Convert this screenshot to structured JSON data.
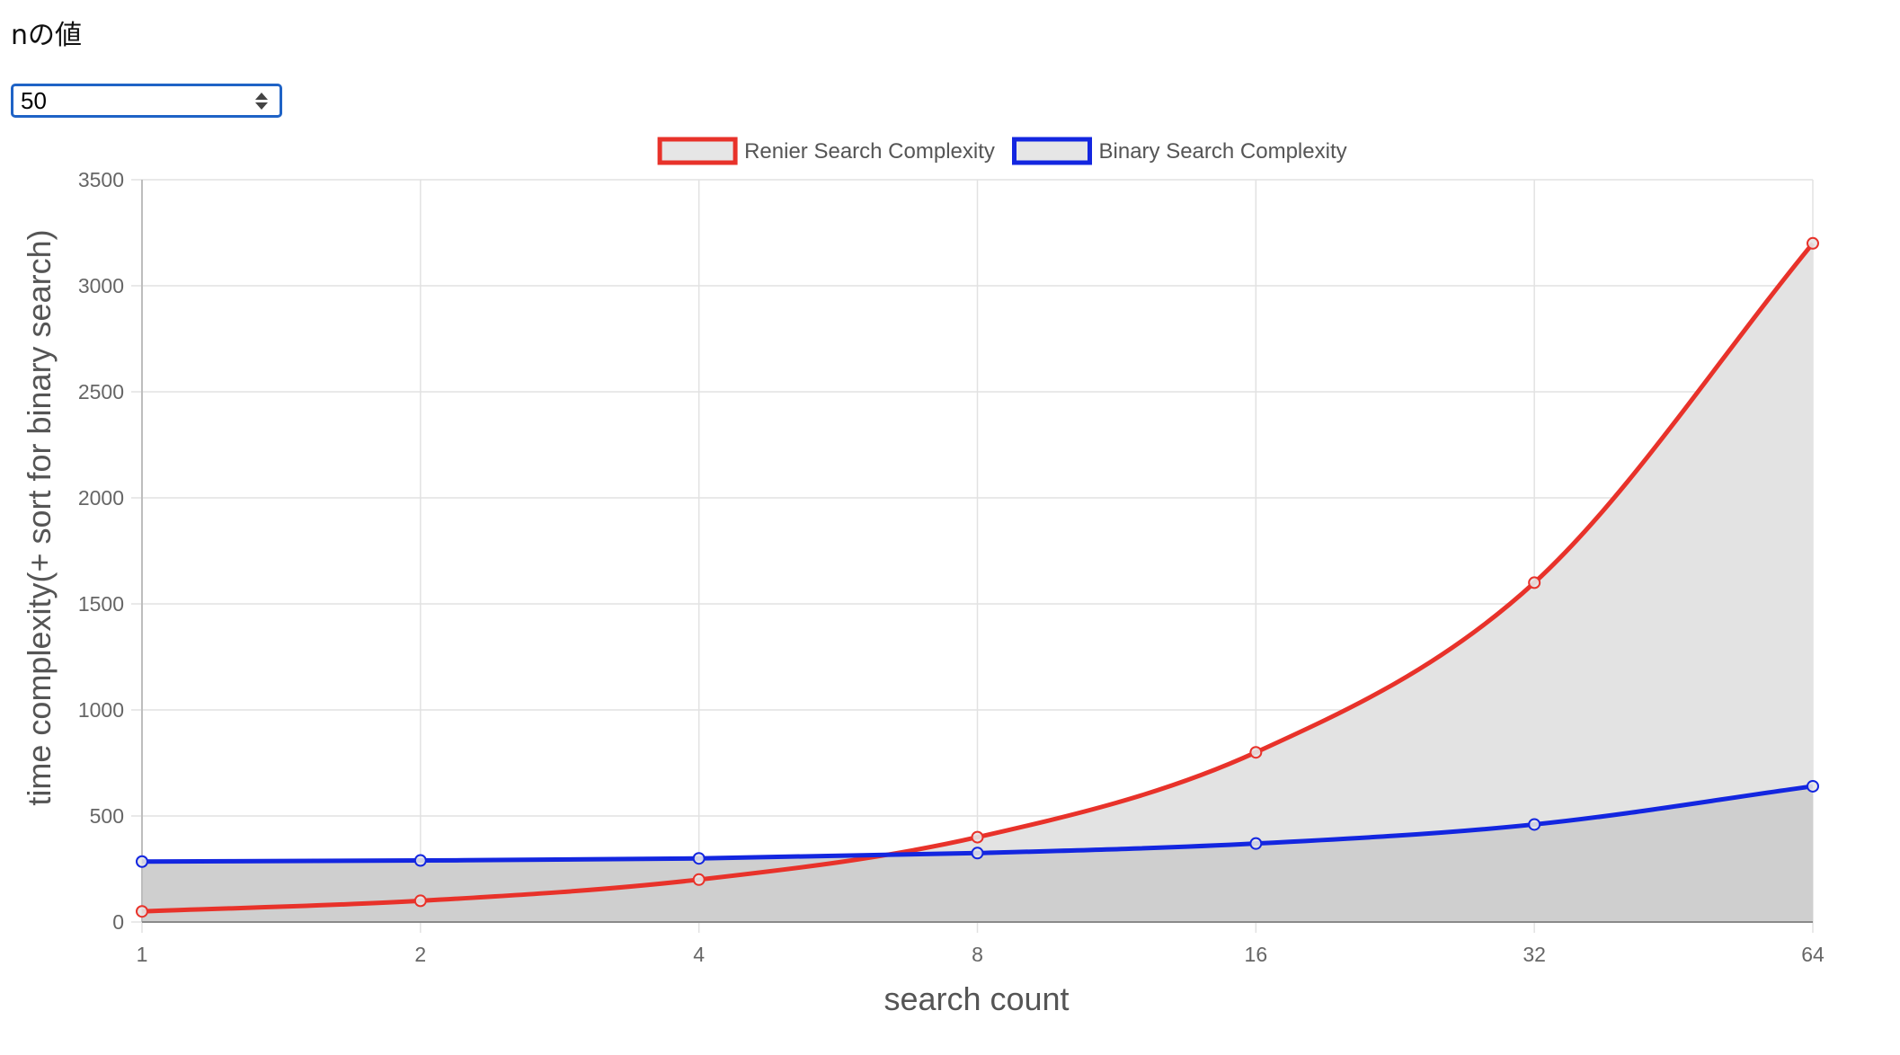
{
  "controls": {
    "n_label": "nの値",
    "n_value": "50"
  },
  "chart_data": {
    "type": "line",
    "x": [
      1,
      2,
      4,
      8,
      16,
      32,
      64
    ],
    "x_scale": "log2",
    "xlabel": "search count",
    "ylabel": "time complexity(+ sort for binary search)",
    "ylim": [
      0,
      3500
    ],
    "yticks": [
      0,
      500,
      1000,
      1500,
      2000,
      2500,
      3000,
      3500
    ],
    "grid": true,
    "legend_position": "top",
    "fill": true,
    "series": [
      {
        "name": "Renier Search Complexity",
        "color": "#e8322a",
        "fill_color": "#e3e3e3",
        "values": [
          50,
          100,
          200,
          400,
          800,
          1600,
          3200
        ]
      },
      {
        "name": "Binary Search Complexity",
        "color": "#1326e0",
        "fill_color": "#cfcfcf",
        "values": [
          285,
          290,
          300,
          325,
          370,
          460,
          640
        ]
      }
    ]
  }
}
